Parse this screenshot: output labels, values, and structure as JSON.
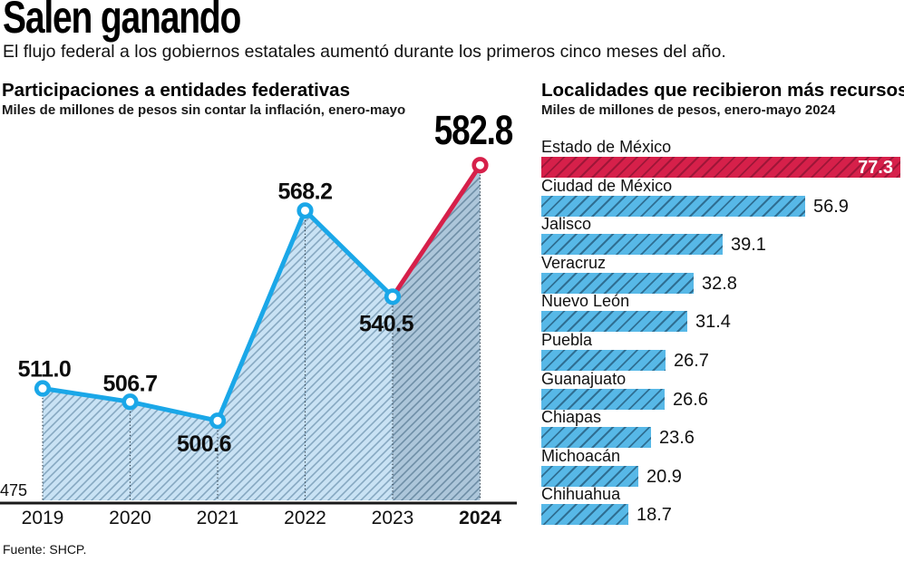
{
  "header": {
    "title": "Salen ganando",
    "subtitle": "El flujo federal a los gobiernos estatales aumentó durante los primeros cinco meses del año."
  },
  "footer": {
    "source": "Fuente: SHCP."
  },
  "chart_data": [
    {
      "type": "line",
      "title": "Participaciones a entidades federativas",
      "subtitle": "Miles de millones de pesos sin contar la inflación, enero-mayo",
      "x": [
        "2019",
        "2020",
        "2021",
        "2022",
        "2023",
        "2024"
      ],
      "values": [
        511.0,
        506.7,
        500.6,
        568.2,
        540.5,
        582.8
      ],
      "point_labels": [
        "511.0",
        "506.7",
        "500.6",
        "568.2",
        "540.5",
        "582.8"
      ],
      "ylim": [
        475,
        590
      ],
      "baseline_tick_label": "475",
      "highlight_last_segment": true,
      "legend": "none",
      "grid": "dotted vertical droplines per point",
      "colors": {
        "line": "#1aa7e8",
        "highlight_line": "#d6204a",
        "area_fill": "#c9e2f4",
        "area_hatch": "#86a8c1",
        "area_fill_dark": "#adc6da",
        "area_hatch_dark": "#6e8ea6",
        "axis": "#1a1a1a",
        "marker_fill": "#ffffff"
      }
    },
    {
      "type": "bar",
      "title": "Localidades que recibieron más recursos",
      "subtitle": "Miles de millones de pesos, enero-mayo 2024",
      "categories": [
        "Estado de México",
        "Ciudad de México",
        "Jalisco",
        "Veracruz",
        "Nuevo León",
        "Puebla",
        "Guanajuato",
        "Chiapas",
        "Michoacán",
        "Chihuahua"
      ],
      "values": [
        77.3,
        56.9,
        39.1,
        32.8,
        31.4,
        26.7,
        26.6,
        23.6,
        20.9,
        18.7
      ],
      "value_labels": [
        "77.3",
        "56.9",
        "39.1",
        "32.8",
        "31.4",
        "26.7",
        "26.6",
        "23.6",
        "20.9",
        "18.7"
      ],
      "orientation": "horizontal",
      "xlim": [
        0,
        77.3
      ],
      "highlight_index": 0,
      "colors": {
        "bar": "#57b8e7",
        "bar_hatch": "#2f6f93",
        "highlight_bar": "#d6204a",
        "highlight_hatch": "#9e1638",
        "value_inside": "#ffffff",
        "value_outside": "#111111"
      }
    }
  ]
}
